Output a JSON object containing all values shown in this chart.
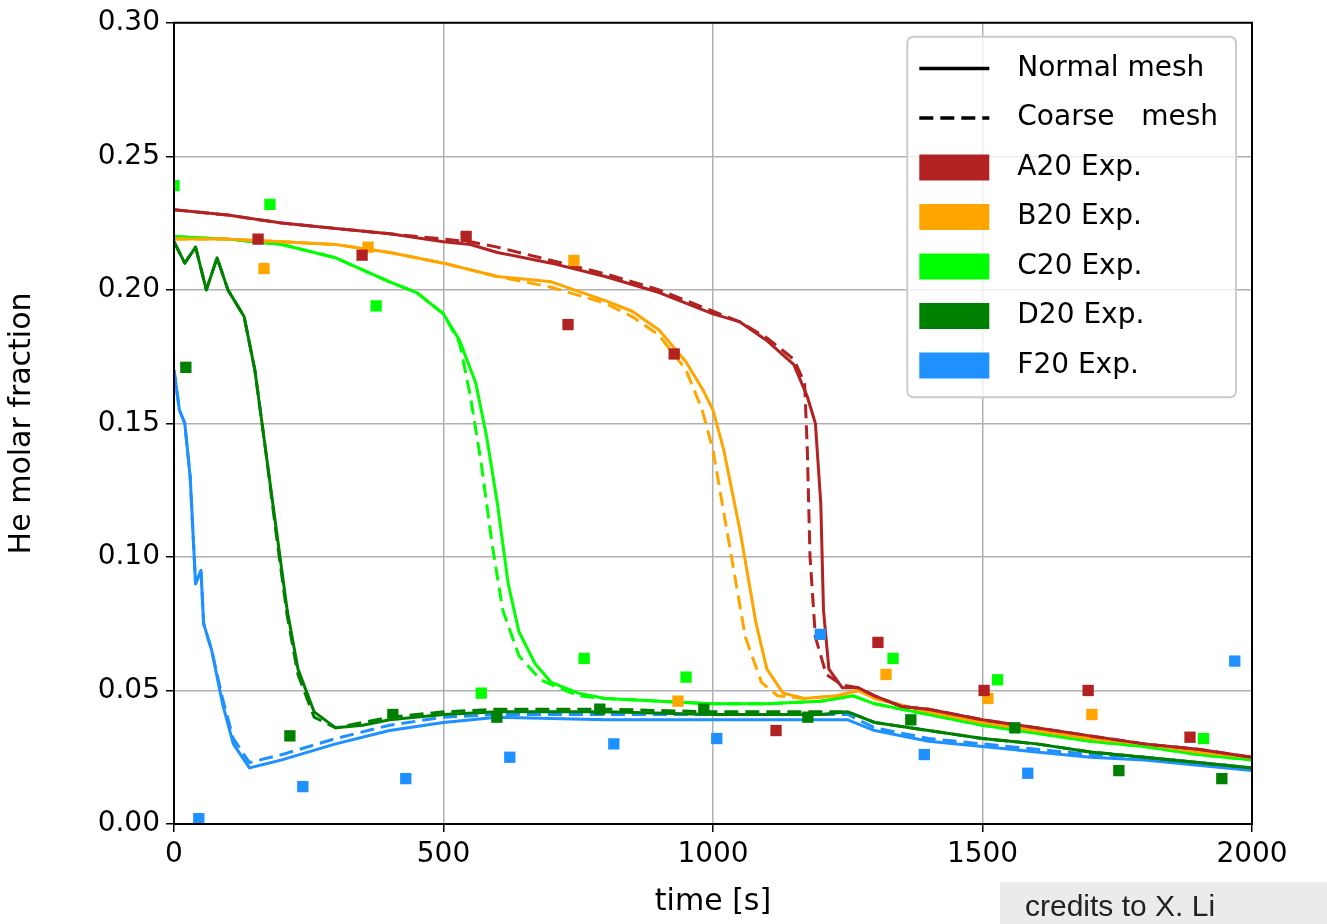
{
  "chart_data": {
    "type": "line",
    "xlabel": "time [s]",
    "ylabel": "He molar fraction",
    "xlim": [
      0,
      2000
    ],
    "ylim": [
      0,
      0.3
    ],
    "xticks": [
      0,
      500,
      1000,
      1500,
      2000
    ],
    "yticks": [
      {
        "value": 0,
        "label": "0.00"
      },
      {
        "value": 0.05,
        "label": "0.05"
      },
      {
        "value": 0.1,
        "label": "0.10"
      },
      {
        "value": 0.15,
        "label": "0.15"
      },
      {
        "value": 0.2,
        "label": "0.20"
      },
      {
        "value": 0.25,
        "label": "0.25"
      },
      {
        "value": 0.3,
        "label": "0.30"
      }
    ],
    "grid": true,
    "legend": "top right",
    "annotations": [
      "credits to X. Li"
    ],
    "series": [
      {
        "name": "Normal mesh",
        "line_style": "solid",
        "color": "#000000"
      },
      {
        "name": "Coarse   mesh",
        "line_style": "dashed",
        "color": "#000000"
      },
      {
        "name": "A20 Exp.",
        "type": "scatter",
        "marker": "square",
        "color": "#b22222",
        "x": [
          156,
          349,
          542,
          731,
          928,
          1117,
          1306,
          1503,
          1696,
          1885
        ],
        "values": [
          0.219,
          0.213,
          0.22,
          0.187,
          0.176,
          0.035,
          0.068,
          0.05,
          0.05,
          0.0325
        ]
      },
      {
        "name": "B20 Exp.",
        "type": "scatter",
        "marker": "square",
        "color": "#ffa500",
        "x": [
          167,
          360,
          742,
          935,
          1321,
          1510,
          1703
        ],
        "values": [
          0.208,
          0.216,
          0.211,
          0.046,
          0.056,
          0.047,
          0.041
        ]
      },
      {
        "name": "C20 Exp.",
        "type": "scatter",
        "marker": "square",
        "color": "#00ff00",
        "x": [
          0,
          178,
          375,
          570,
          761,
          950,
          1334,
          1528,
          1910
        ],
        "values": [
          0.239,
          0.232,
          0.194,
          0.049,
          0.062,
          0.055,
          0.062,
          0.054,
          0.032
        ]
      },
      {
        "name": "D20 Exp.",
        "type": "scatter",
        "marker": "square",
        "color": "#008000",
        "x": [
          22,
          215,
          406,
          599,
          790,
          983,
          1176,
          1367,
          1560,
          1753,
          1944
        ],
        "values": [
          0.171,
          0.033,
          0.041,
          0.04,
          0.043,
          0.043,
          0.04,
          0.039,
          0.036,
          0.02,
          0.017
        ]
      },
      {
        "name": "F20 Exp.",
        "type": "scatter",
        "marker": "square",
        "color": "#1e90ff",
        "x": [
          46,
          239,
          430,
          623,
          816,
          1007,
          1199,
          1392,
          1584,
          1968
        ],
        "values": [
          0.002,
          0.014,
          0.017,
          0.025,
          0.03,
          0.032,
          0.071,
          0.026,
          0.019,
          0.061
        ]
      },
      {
        "type": "line",
        "line_style": "solid",
        "color": "#b22222",
        "x": [
          0,
          100,
          200,
          300,
          400,
          500,
          550,
          600,
          700,
          800,
          900,
          1000,
          1050,
          1100,
          1150,
          1175,
          1190,
          1200,
          1205,
          1215,
          1240,
          1270,
          1300,
          1350,
          1400,
          1500,
          1600,
          1700,
          1800,
          1900,
          2000
        ],
        "values": [
          0.23,
          0.228,
          0.225,
          0.223,
          0.221,
          0.218,
          0.217,
          0.214,
          0.21,
          0.205,
          0.199,
          0.191,
          0.188,
          0.181,
          0.172,
          0.16,
          0.15,
          0.12,
          0.08,
          0.058,
          0.051,
          0.051,
          0.048,
          0.044,
          0.043,
          0.039,
          0.036,
          0.033,
          0.03,
          0.028,
          0.025
        ]
      },
      {
        "type": "line",
        "line_style": "dashed",
        "color": "#b22222",
        "x": [
          0,
          100,
          200,
          300,
          400,
          500,
          550,
          600,
          700,
          800,
          900,
          1000,
          1050,
          1100,
          1150,
          1170,
          1175,
          1180,
          1190,
          1210,
          1240,
          1270,
          1300,
          1350,
          1400,
          1500,
          1600,
          1700,
          1800,
          1900,
          2000
        ],
        "values": [
          0.23,
          0.228,
          0.225,
          0.223,
          0.221,
          0.219,
          0.218,
          0.216,
          0.211,
          0.206,
          0.2,
          0.192,
          0.188,
          0.182,
          0.174,
          0.165,
          0.14,
          0.1,
          0.07,
          0.056,
          0.052,
          0.051,
          0.048,
          0.044,
          0.043,
          0.039,
          0.036,
          0.033,
          0.03,
          0.028,
          0.025
        ]
      },
      {
        "type": "line",
        "line_style": "solid",
        "color": "#ffa500",
        "x": [
          0,
          100,
          200,
          300,
          400,
          500,
          600,
          700,
          800,
          850,
          900,
          950,
          980,
          1000,
          1020,
          1050,
          1080,
          1100,
          1130,
          1170,
          1230,
          1270,
          1300,
          1400,
          1500,
          1600,
          1700,
          1800,
          1900,
          2000
        ],
        "values": [
          0.219,
          0.219,
          0.218,
          0.217,
          0.214,
          0.21,
          0.205,
          0.203,
          0.196,
          0.192,
          0.185,
          0.173,
          0.163,
          0.155,
          0.14,
          0.11,
          0.075,
          0.058,
          0.049,
          0.047,
          0.048,
          0.05,
          0.047,
          0.042,
          0.038,
          0.035,
          0.032,
          0.03,
          0.027,
          0.025
        ]
      },
      {
        "type": "line",
        "line_style": "dashed",
        "color": "#ffa500",
        "x": [
          0,
          100,
          200,
          300,
          400,
          500,
          600,
          700,
          800,
          850,
          900,
          950,
          980,
          1000,
          1030,
          1060,
          1090,
          1120,
          1170,
          1230,
          1270,
          1300,
          1400,
          1500,
          1600,
          1700,
          1800,
          1900,
          2000
        ],
        "values": [
          0.219,
          0.219,
          0.218,
          0.217,
          0.214,
          0.21,
          0.205,
          0.201,
          0.195,
          0.19,
          0.183,
          0.17,
          0.155,
          0.14,
          0.105,
          0.07,
          0.053,
          0.048,
          0.047,
          0.048,
          0.05,
          0.047,
          0.042,
          0.038,
          0.035,
          0.032,
          0.03,
          0.027,
          0.025
        ]
      },
      {
        "type": "line",
        "line_style": "solid",
        "color": "#00ff00",
        "x": [
          0,
          100,
          200,
          300,
          400,
          450,
          500,
          530,
          560,
          580,
          600,
          620,
          640,
          670,
          700,
          750,
          800,
          900,
          1000,
          1100,
          1200,
          1260,
          1300,
          1400,
          1500,
          1600,
          1700,
          1800,
          1900,
          2000
        ],
        "values": [
          0.22,
          0.219,
          0.217,
          0.212,
          0.203,
          0.199,
          0.191,
          0.181,
          0.165,
          0.145,
          0.12,
          0.09,
          0.072,
          0.06,
          0.053,
          0.049,
          0.047,
          0.046,
          0.045,
          0.045,
          0.046,
          0.048,
          0.045,
          0.041,
          0.037,
          0.034,
          0.031,
          0.029,
          0.026,
          0.024
        ]
      },
      {
        "type": "line",
        "line_style": "dashed",
        "color": "#00ff00",
        "x": [
          0,
          100,
          200,
          300,
          400,
          450,
          500,
          530,
          550,
          570,
          590,
          610,
          640,
          680,
          750,
          800,
          900,
          1000,
          1100,
          1200,
          1260,
          1300,
          1400,
          1500,
          1600,
          1700,
          1800,
          1900,
          2000
        ],
        "values": [
          0.22,
          0.219,
          0.217,
          0.212,
          0.203,
          0.199,
          0.191,
          0.18,
          0.16,
          0.135,
          0.105,
          0.08,
          0.063,
          0.054,
          0.048,
          0.047,
          0.046,
          0.045,
          0.045,
          0.046,
          0.048,
          0.045,
          0.041,
          0.037,
          0.034,
          0.031,
          0.029,
          0.026,
          0.024
        ]
      },
      {
        "type": "line",
        "line_style": "solid",
        "color": "#008000",
        "x": [
          0,
          20,
          40,
          60,
          80,
          100,
          130,
          150,
          170,
          190,
          210,
          230,
          260,
          300,
          350,
          400,
          500,
          600,
          800,
          1000,
          1200,
          1250,
          1300,
          1400,
          1500,
          1600,
          1700,
          1800,
          1900,
          2000
        ],
        "values": [
          0.218,
          0.21,
          0.216,
          0.2,
          0.212,
          0.2,
          0.19,
          0.17,
          0.14,
          0.11,
          0.08,
          0.058,
          0.042,
          0.036,
          0.037,
          0.039,
          0.041,
          0.042,
          0.042,
          0.041,
          0.041,
          0.042,
          0.038,
          0.035,
          0.032,
          0.03,
          0.027,
          0.025,
          0.023,
          0.021
        ]
      },
      {
        "type": "line",
        "line_style": "dashed",
        "color": "#008000",
        "x": [
          0,
          20,
          40,
          60,
          80,
          100,
          130,
          150,
          170,
          190,
          210,
          230,
          260,
          300,
          350,
          400,
          500,
          600,
          800,
          1000,
          1200,
          1250,
          1300,
          1400,
          1500,
          1600,
          1700,
          1800,
          1900,
          2000
        ],
        "values": [
          0.218,
          0.21,
          0.216,
          0.2,
          0.212,
          0.2,
          0.19,
          0.17,
          0.14,
          0.108,
          0.078,
          0.056,
          0.04,
          0.036,
          0.038,
          0.04,
          0.042,
          0.043,
          0.043,
          0.042,
          0.042,
          0.042,
          0.038,
          0.035,
          0.032,
          0.03,
          0.027,
          0.025,
          0.023,
          0.021
        ]
      },
      {
        "type": "line",
        "line_style": "solid",
        "color": "#1e90ff",
        "x": [
          0,
          10,
          20,
          30,
          40,
          50,
          55,
          70,
          90,
          110,
          140,
          200,
          300,
          400,
          500,
          600,
          800,
          1000,
          1200,
          1250,
          1300,
          1400,
          1500,
          1600,
          1700,
          1800,
          1900,
          2000
        ],
        "values": [
          0.17,
          0.155,
          0.15,
          0.13,
          0.09,
          0.095,
          0.075,
          0.065,
          0.045,
          0.03,
          0.021,
          0.024,
          0.03,
          0.035,
          0.038,
          0.04,
          0.039,
          0.039,
          0.039,
          0.039,
          0.035,
          0.031,
          0.029,
          0.027,
          0.025,
          0.024,
          0.022,
          0.02
        ]
      },
      {
        "type": "line",
        "line_style": "dashed",
        "color": "#1e90ff",
        "x": [
          0,
          10,
          20,
          30,
          40,
          50,
          55,
          70,
          90,
          110,
          140,
          200,
          300,
          400,
          500,
          600,
          800,
          1000,
          1200,
          1250,
          1300,
          1400,
          1500,
          1600,
          1700,
          1800,
          1900,
          2000
        ],
        "values": [
          0.17,
          0.155,
          0.15,
          0.13,
          0.09,
          0.095,
          0.075,
          0.065,
          0.047,
          0.032,
          0.023,
          0.026,
          0.032,
          0.037,
          0.04,
          0.041,
          0.041,
          0.041,
          0.041,
          0.041,
          0.036,
          0.032,
          0.03,
          0.028,
          0.026,
          0.025,
          0.023,
          0.021
        ]
      }
    ]
  }
}
